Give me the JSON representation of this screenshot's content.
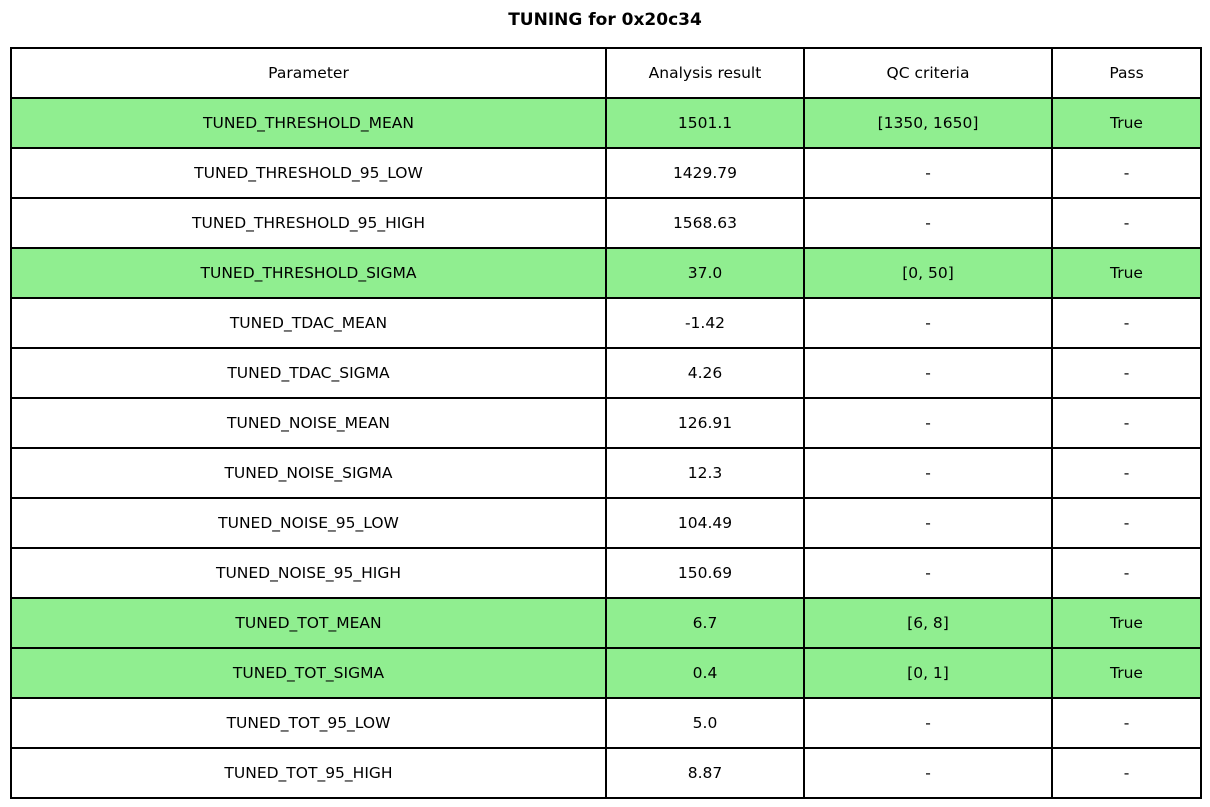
{
  "title": "TUNING for 0x20c34",
  "colors": {
    "highlight_green": "#90EE90",
    "border": "#000000",
    "background": "#ffffff",
    "text": "#000000"
  },
  "table": {
    "columns": [
      "Parameter",
      "Analysis result",
      "QC criteria",
      "Pass"
    ],
    "rows": [
      {
        "parameter": "TUNED_THRESHOLD_MEAN",
        "result": "1501.1",
        "qc": "[1350, 1650]",
        "pass": "True",
        "highlight": true
      },
      {
        "parameter": "TUNED_THRESHOLD_95_LOW",
        "result": "1429.79",
        "qc": "-",
        "pass": "-",
        "highlight": false
      },
      {
        "parameter": "TUNED_THRESHOLD_95_HIGH",
        "result": "1568.63",
        "qc": "-",
        "pass": "-",
        "highlight": false
      },
      {
        "parameter": "TUNED_THRESHOLD_SIGMA",
        "result": "37.0",
        "qc": "[0, 50]",
        "pass": "True",
        "highlight": true
      },
      {
        "parameter": "TUNED_TDAC_MEAN",
        "result": "-1.42",
        "qc": "-",
        "pass": "-",
        "highlight": false
      },
      {
        "parameter": "TUNED_TDAC_SIGMA",
        "result": "4.26",
        "qc": "-",
        "pass": "-",
        "highlight": false
      },
      {
        "parameter": "TUNED_NOISE_MEAN",
        "result": "126.91",
        "qc": "-",
        "pass": "-",
        "highlight": false
      },
      {
        "parameter": "TUNED_NOISE_SIGMA",
        "result": "12.3",
        "qc": "-",
        "pass": "-",
        "highlight": false
      },
      {
        "parameter": "TUNED_NOISE_95_LOW",
        "result": "104.49",
        "qc": "-",
        "pass": "-",
        "highlight": false
      },
      {
        "parameter": "TUNED_NOISE_95_HIGH",
        "result": "150.69",
        "qc": "-",
        "pass": "-",
        "highlight": false
      },
      {
        "parameter": "TUNED_TOT_MEAN",
        "result": "6.7",
        "qc": "[6, 8]",
        "pass": "True",
        "highlight": true
      },
      {
        "parameter": "TUNED_TOT_SIGMA",
        "result": "0.4",
        "qc": "[0, 1]",
        "pass": "True",
        "highlight": true
      },
      {
        "parameter": "TUNED_TOT_95_LOW",
        "result": "5.0",
        "qc": "-",
        "pass": "-",
        "highlight": false
      },
      {
        "parameter": "TUNED_TOT_95_HIGH",
        "result": "8.87",
        "qc": "-",
        "pass": "-",
        "highlight": false
      }
    ]
  },
  "chart_data": {
    "type": "table",
    "title": "TUNING for 0x20c34",
    "columns": [
      "Parameter",
      "Analysis result",
      "QC criteria",
      "Pass"
    ],
    "rows": [
      [
        "TUNED_THRESHOLD_MEAN",
        "1501.1",
        "[1350, 1650]",
        "True"
      ],
      [
        "TUNED_THRESHOLD_95_LOW",
        "1429.79",
        "-",
        "-"
      ],
      [
        "TUNED_THRESHOLD_95_HIGH",
        "1568.63",
        "-",
        "-"
      ],
      [
        "TUNED_THRESHOLD_SIGMA",
        "37.0",
        "[0, 50]",
        "True"
      ],
      [
        "TUNED_TDAC_MEAN",
        "-1.42",
        "-",
        "-"
      ],
      [
        "TUNED_TDAC_SIGMA",
        "4.26",
        "-",
        "-"
      ],
      [
        "TUNED_NOISE_MEAN",
        "126.91",
        "-",
        "-"
      ],
      [
        "TUNED_NOISE_SIGMA",
        "12.3",
        "-",
        "-"
      ],
      [
        "TUNED_NOISE_95_LOW",
        "104.49",
        "-",
        "-"
      ],
      [
        "TUNED_NOISE_95_HIGH",
        "150.69",
        "-",
        "-"
      ],
      [
        "TUNED_TOT_MEAN",
        "6.7",
        "[6, 8]",
        "True"
      ],
      [
        "TUNED_TOT_SIGMA",
        "0.4",
        "[0, 1]",
        "True"
      ],
      [
        "TUNED_TOT_95_LOW",
        "5.0",
        "-",
        "-"
      ],
      [
        "TUNED_TOT_95_HIGH",
        "8.87",
        "-",
        "-"
      ]
    ],
    "highlighted_row_indices": [
      0,
      3,
      10,
      11
    ],
    "layout": {
      "highlight_color": "#90EE90",
      "grid": true,
      "cell_text_align": "center"
    }
  }
}
